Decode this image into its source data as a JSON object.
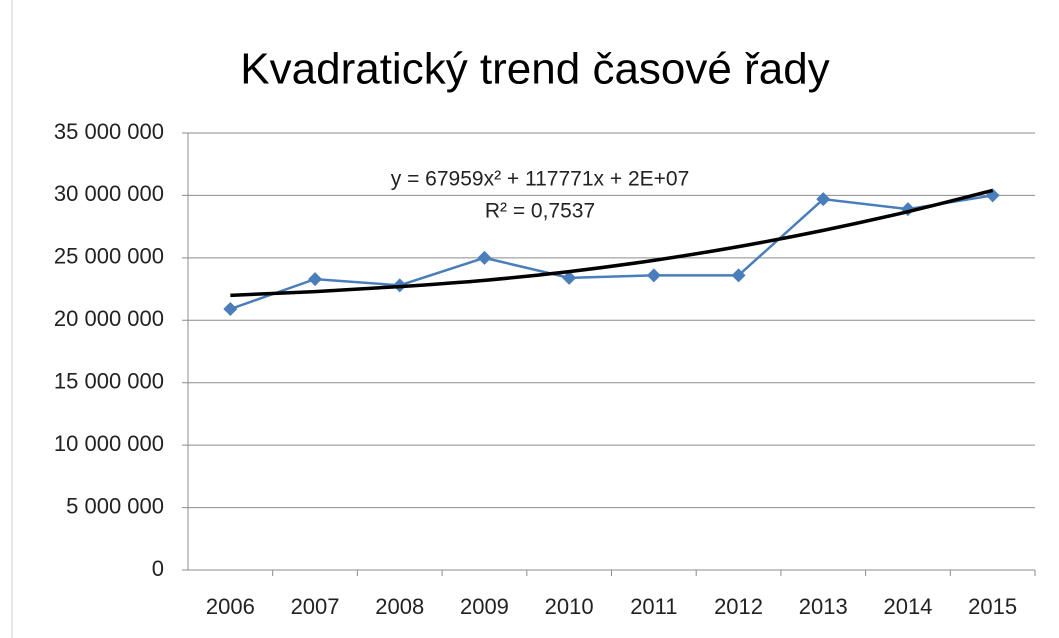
{
  "chart_data": {
    "type": "line",
    "title": "Kvadratický trend časové řady",
    "categories": [
      "2006",
      "2007",
      "2008",
      "2009",
      "2010",
      "2011",
      "2012",
      "2013",
      "2014",
      "2015"
    ],
    "series": [
      {
        "color": "#4a7ebb",
        "marker": "diamond",
        "values": [
          20900000,
          23300000,
          22800000,
          25000000,
          23400000,
          23600000,
          23600000,
          29700000,
          28900000,
          30000000
        ]
      },
      {
        "color": "#000000",
        "smooth": true,
        "values": [
          22000000,
          22300000,
          22700000,
          23200000,
          23900000,
          24800000,
          25900000,
          27200000,
          28700000,
          30400000
        ]
      }
    ],
    "annotations": [
      "y = 67959x² + 117771x + 2E+07",
      "R² = 0,7537"
    ],
    "ylim": [
      0,
      35000000
    ],
    "yticks": [
      0,
      {
        "value": 5000000,
        "label": "5 000 000"
      },
      {
        "value": 10000000,
        "label": "10 000 000"
      },
      {
        "value": 15000000,
        "label": "15 000 000"
      },
      {
        "value": 20000000,
        "label": "20 000 000"
      },
      {
        "value": 25000000,
        "label": "25 000 000"
      },
      {
        "value": 30000000,
        "label": "30 000 000"
      },
      {
        "value": 35000000,
        "label": "35 000 000"
      }
    ],
    "grid": true
  }
}
